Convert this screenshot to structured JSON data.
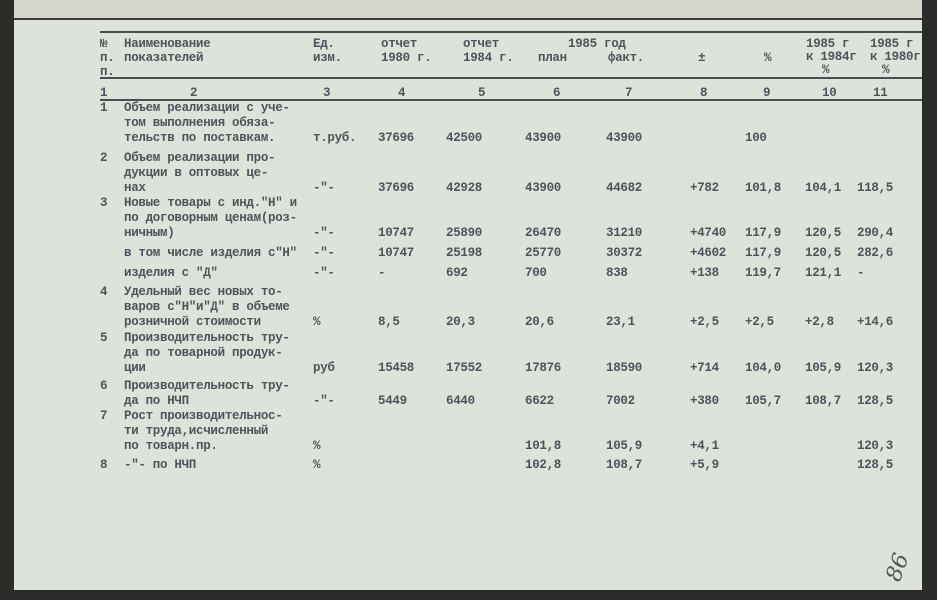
{
  "headers": {
    "num": [
      "№",
      "п.",
      "п."
    ],
    "name": [
      "Наименование",
      "показателей"
    ],
    "unit": [
      "Ед.",
      "изм."
    ],
    "c4": [
      "отчет",
      "1980 г."
    ],
    "c5": [
      "отчет",
      "1984 г."
    ],
    "year_group": "1985 год",
    "c6": "план",
    "c7": "факт.",
    "c8": "±",
    "c9": "%",
    "c10": [
      "1985 г",
      "к 1984г",
      "%"
    ],
    "c11": [
      "1985 г",
      "к 1980г",
      "%"
    ]
  },
  "column_numbers": [
    "1",
    "2",
    "3",
    "4",
    "5",
    "6",
    "7",
    "8",
    "9",
    "10",
    "11"
  ],
  "rows": [
    {
      "num": "1",
      "name": [
        "Объем реализации с уче-",
        "том выполнения обяза-",
        "тельств по поставкам."
      ],
      "unit": "т.руб.",
      "values": [
        "37696",
        "42500",
        "43900",
        "43900",
        "",
        "100",
        "",
        ""
      ]
    },
    {
      "num": "2",
      "name": [
        "Объем реализации про-",
        "дукции в оптовых це-",
        "нах"
      ],
      "unit": "-\"-",
      "values": [
        "37696",
        "42928",
        "43900",
        "44682",
        "+782",
        "101,8",
        "104,1",
        "118,5"
      ]
    },
    {
      "num": "3",
      "name": [
        "Новые товары с инд.\"Н\" и",
        "по договорным ценам(роз-",
        "ничным)"
      ],
      "unit": "-\"-",
      "values": [
        "10747",
        "25890",
        "26470",
        "31210",
        "+4740",
        "117,9",
        "120,5",
        "290,4"
      ]
    },
    {
      "num": "",
      "name": [
        "в том числе изделия с\"Н\""
      ],
      "unit": "-\"-",
      "values": [
        "10747",
        "25198",
        "25770",
        "30372",
        "+4602",
        "117,9",
        "120,5",
        "282,6"
      ]
    },
    {
      "num": "",
      "name": [
        "изделия с \"Д\""
      ],
      "unit": "-\"-",
      "values": [
        "-",
        "692",
        "700",
        "838",
        "+138",
        "119,7",
        "121,1",
        "-"
      ]
    },
    {
      "num": "4",
      "name": [
        "Удельный вес новых то-",
        "варов с\"Н\"и\"Д\" в объеме",
        "розничной стоимости"
      ],
      "unit": "%",
      "values": [
        "8,5",
        "20,3",
        "20,6",
        "23,1",
        "+2,5",
        "+2,5",
        "+2,8",
        "+14,6"
      ]
    },
    {
      "num": "5",
      "name": [
        "Производительность тру-",
        "да по товарной продук-",
        "ции"
      ],
      "unit": "руб",
      "values": [
        "15458",
        "17552",
        "17876",
        "18590",
        "+714",
        "104,0",
        "105,9",
        "120,3"
      ]
    },
    {
      "num": "6",
      "name": [
        "Производительность тру-",
        "да по НЧП"
      ],
      "unit": "-\"-",
      "values": [
        "5449",
        "6440",
        "6622",
        "7002",
        "+380",
        "105,7",
        "108,7",
        "128,5"
      ]
    },
    {
      "num": "7",
      "name": [
        "Рост производительнос-",
        "ти труда,исчисленный",
        "по товарн.пр."
      ],
      "unit": "%",
      "values": [
        "",
        "",
        "101,8",
        "105,9",
        "+4,1",
        "",
        "",
        "120,3"
      ]
    },
    {
      "num": "8",
      "name": [
        "-\"- по НЧП"
      ],
      "unit": "%",
      "values": [
        "",
        "",
        "102,8",
        "108,7",
        "+5,9",
        "",
        "",
        "128,5"
      ]
    }
  ],
  "handwritten_page_number": "86"
}
